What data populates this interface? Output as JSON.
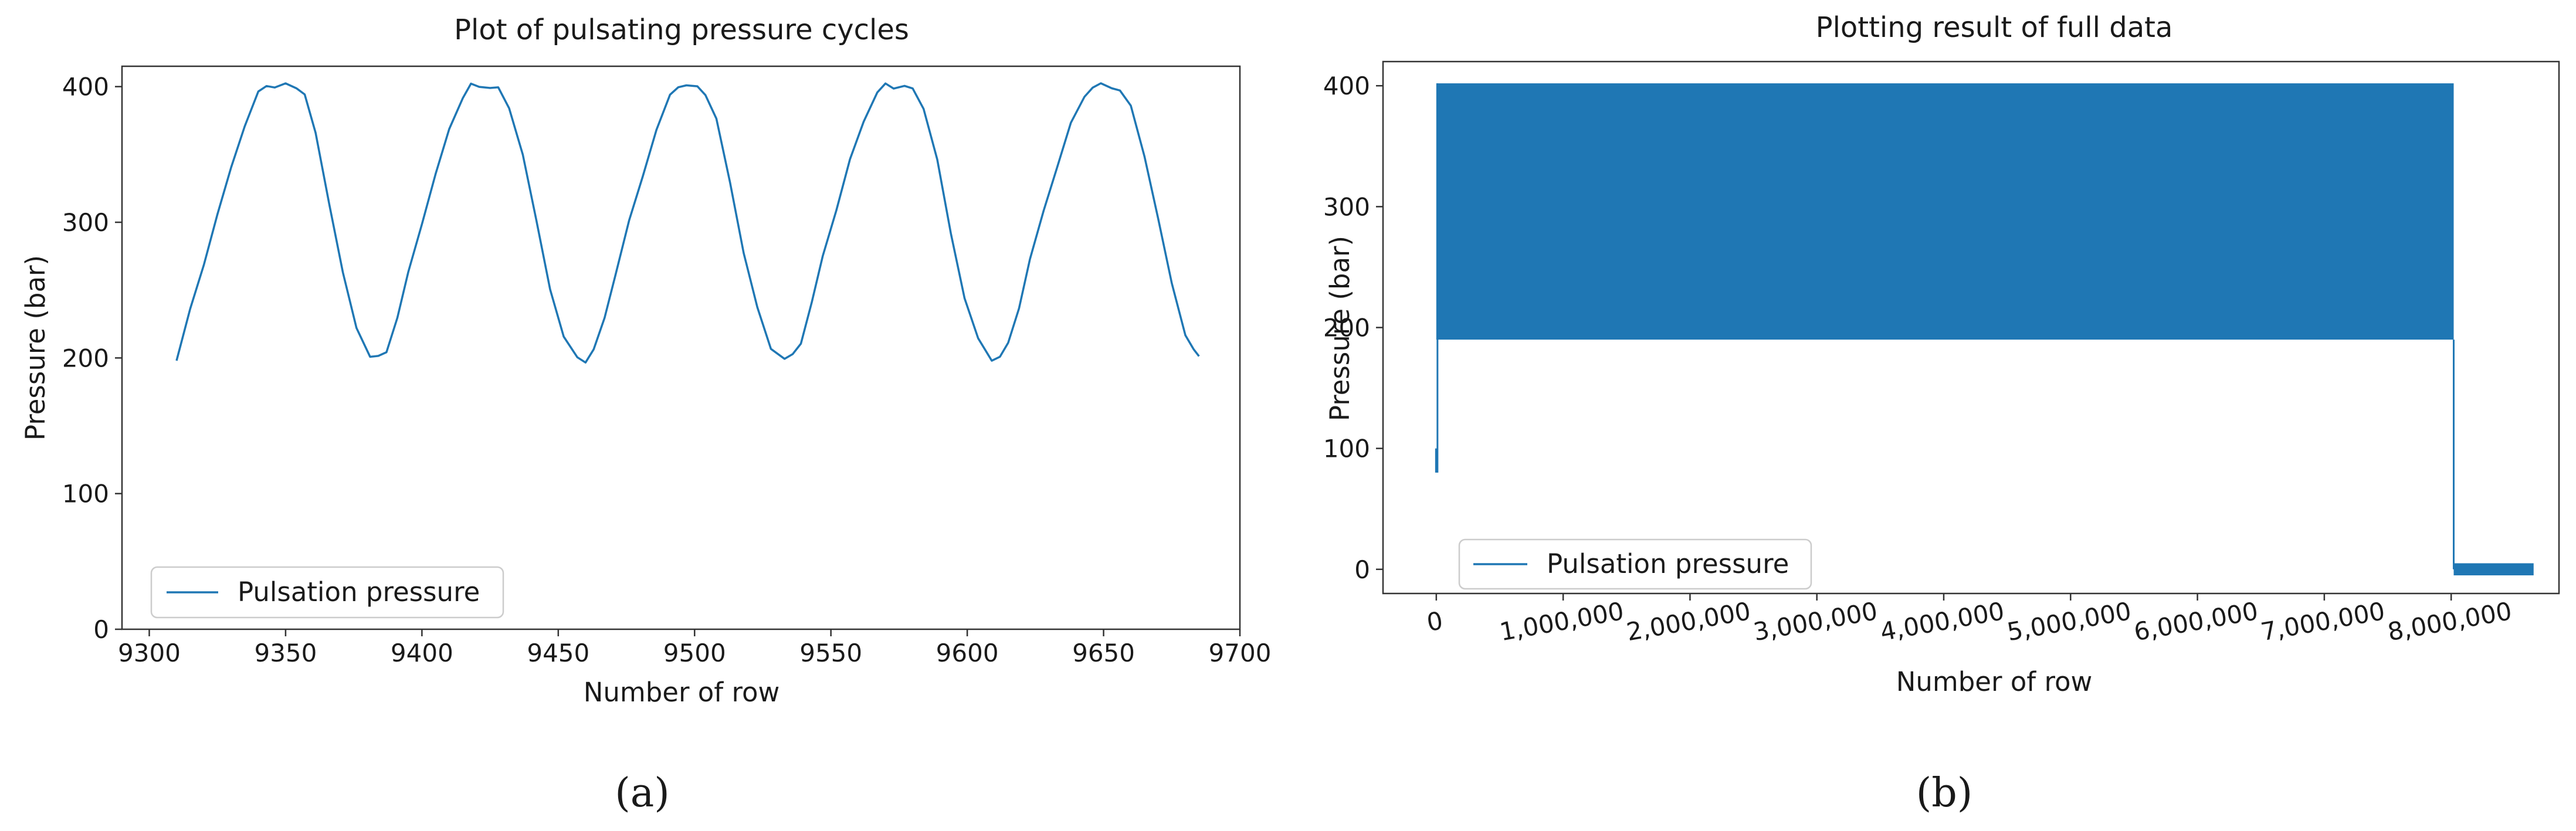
{
  "chart_data": [
    {
      "panel": "a",
      "type": "line",
      "title": "Plot of pulsating pressure cycles",
      "xlabel": "Number of row",
      "ylabel": "Pressure  (bar)",
      "xlim": [
        9290,
        9700
      ],
      "ylim": [
        0,
        415
      ],
      "xticks": [
        9300,
        9350,
        9400,
        9450,
        9500,
        9550,
        9600,
        9650,
        9700
      ],
      "xtick_labels": [
        "9300",
        "9350",
        "9400",
        "9450",
        "9500",
        "9550",
        "9600",
        "9650",
        "9700"
      ],
      "yticks": [
        0,
        100,
        200,
        300,
        400
      ],
      "ytick_labels": [
        "0",
        "100",
        "200",
        "300",
        "400"
      ],
      "legend_placement": "lower-left",
      "grid": false,
      "color": "#1f77b4",
      "caption": "(a)",
      "series": [
        {
          "name": "Pulsation pressure",
          "x": [
            9310,
            9315,
            9320,
            9325,
            9330,
            9335,
            9340,
            9343,
            9346,
            9350,
            9354,
            9357,
            9361,
            9366,
            9371,
            9376,
            9381,
            9384,
            9387,
            9391,
            9395,
            9400,
            9405,
            9410,
            9415,
            9418,
            9421,
            9425,
            9428,
            9432,
            9437,
            9442,
            9447,
            9452,
            9457,
            9460,
            9463,
            9467,
            9471,
            9476,
            9481,
            9486,
            9491,
            9494,
            9497,
            9501,
            9504,
            9508,
            9513,
            9518,
            9523,
            9528,
            9533,
            9536,
            9539,
            9543,
            9547,
            9552,
            9557,
            9562,
            9567,
            9570,
            9573,
            9577,
            9580,
            9584,
            9589,
            9594,
            9599,
            9604,
            9609,
            9612,
            9615,
            9619,
            9623,
            9628,
            9633,
            9638,
            9643,
            9646,
            9649,
            9653,
            9656,
            9660,
            9665,
            9670,
            9675,
            9680,
            9683,
            9685
          ],
          "y": [
            198,
            235,
            270,
            305,
            340,
            372,
            395,
            401,
            400,
            401,
            400,
            394,
            365,
            315,
            262,
            222,
            202,
            200,
            205,
            230,
            262,
            300,
            335,
            368,
            393,
            401,
            400,
            400,
            398,
            385,
            350,
            300,
            252,
            215,
            200,
            198,
            205,
            230,
            262,
            300,
            335,
            368,
            393,
            401,
            400,
            400,
            395,
            375,
            330,
            278,
            236,
            208,
            199,
            202,
            212,
            240,
            275,
            310,
            345,
            375,
            396,
            401,
            400,
            400,
            398,
            385,
            345,
            292,
            245,
            213,
            199,
            201,
            210,
            238,
            272,
            308,
            342,
            372,
            393,
            400,
            401,
            400,
            397,
            385,
            350,
            302,
            255,
            218,
            205,
            202
          ]
        }
      ]
    },
    {
      "panel": "b",
      "type": "line",
      "title": "Plotting result of full data",
      "xlabel": "Number of row",
      "ylabel": "Pressure  (bar)",
      "xlim": [
        -420000,
        8850000
      ],
      "ylim": [
        -20,
        420
      ],
      "xticks": [
        0,
        1000000,
        2000000,
        3000000,
        4000000,
        5000000,
        6000000,
        7000000,
        8000000
      ],
      "xtick_labels": [
        "0",
        "1,000,000",
        "2,000,000",
        "3,000,000",
        "4,000,000",
        "5,000,000",
        "6,000,000",
        "7,000,000",
        "8,000,000"
      ],
      "yticks": [
        0,
        100,
        200,
        300,
        400
      ],
      "ytick_labels": [
        "0",
        "100",
        "200",
        "300",
        "400"
      ],
      "legend_placement": "lower-left",
      "grid": false,
      "color": "#1f77b4",
      "caption": "(b)",
      "series": [
        {
          "name": "Pulsation pressure",
          "x": [
            0,
            0,
            30000,
            30000,
            8020000,
            8020000,
            8650000
          ],
          "y_min": [
            80,
            80,
            190,
            190,
            190,
            -5,
            -5
          ],
          "y_max": [
            100,
            100,
            402,
            402,
            402,
            5,
            5
          ],
          "description_values": {
            "start_row": 0,
            "pulsation_min_bar": 190,
            "pulsation_max_bar": 402,
            "pulsation_end_row": 8020000,
            "tail_level_bar": 0,
            "last_row": 8650000
          }
        }
      ]
    }
  ]
}
